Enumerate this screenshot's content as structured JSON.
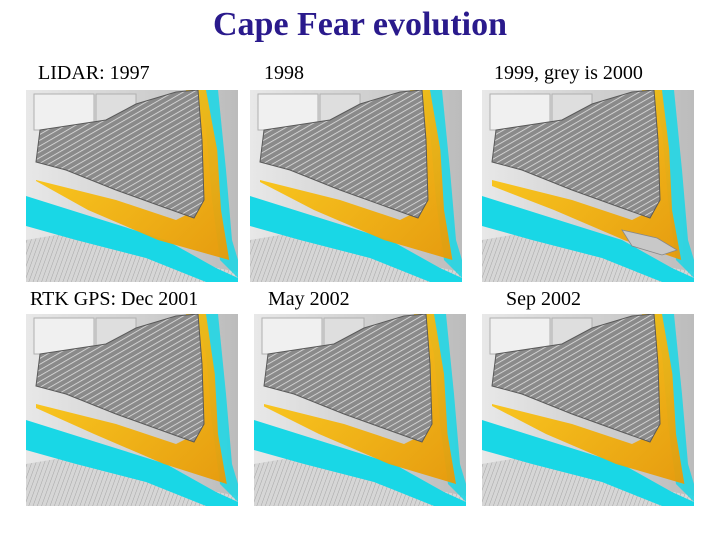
{
  "slide": {
    "title": "Cape Fear evolution"
  },
  "panels": [
    {
      "id": "p1997",
      "label": "LIDAR: 1997",
      "grey_overlay": false,
      "sand_level": 0.9
    },
    {
      "id": "p1998",
      "label": "1998",
      "grey_overlay": false,
      "sand_level": 0.8
    },
    {
      "id": "p1999",
      "label": "1999,   grey is 2000",
      "grey_overlay": true,
      "sand_level": 0.4
    },
    {
      "id": "p2001",
      "label": "RTK GPS: Dec 2001",
      "grey_overlay": false,
      "sand_level": 0.6
    },
    {
      "id": "p2002may",
      "label": "May 2002",
      "grey_overlay": false,
      "sand_level": 0.75
    },
    {
      "id": "p2002sep",
      "label": "Sep 2002",
      "grey_overlay": false,
      "sand_level": 0.8
    }
  ],
  "colors": {
    "title": "#2a1a8c",
    "water": "#19d7e6",
    "sand_light": "#ffd21a",
    "sand_dark": "#e89a06",
    "terrain": "#9a9a9a",
    "flat": "#d0d0d0"
  }
}
